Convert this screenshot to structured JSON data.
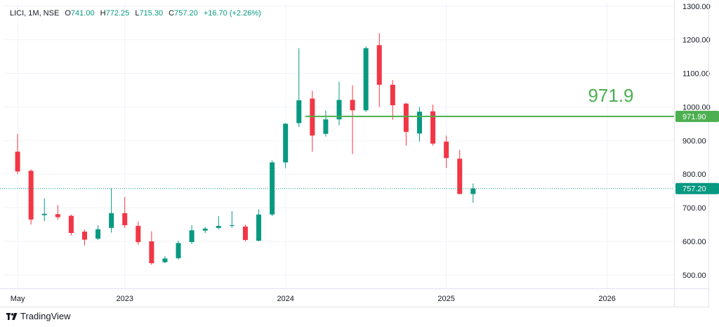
{
  "legend": {
    "symbol": "LICI, 1M, NSE",
    "open_label": "O",
    "open": "741.00",
    "high_label": "H",
    "high": "772.25",
    "low_label": "L",
    "low": "715.30",
    "close_label": "C",
    "close": "757.20",
    "change": "+16.70 (+2.26%)"
  },
  "brand": {
    "name": "TradingView"
  },
  "colors": {
    "up": "#089981",
    "down": "#f23645",
    "level": "#4caf50",
    "grid": "#f0f3fa",
    "border": "#e0e3eb"
  },
  "chart_data": {
    "type": "candlestick",
    "interval": "1M",
    "y_ticks": [
      "500.00",
      "600.00",
      "700.00",
      "800.00",
      "900.00",
      "1000.00",
      "1100.00",
      "1200.00",
      "1300.00"
    ],
    "ylim": [
      460,
      1310
    ],
    "x_ticks": [
      {
        "label": "May",
        "month": "2022-05"
      },
      {
        "label": "2023",
        "month": "2023-01"
      },
      {
        "label": "2024",
        "month": "2024-01"
      },
      {
        "label": "2025",
        "month": "2025-01"
      },
      {
        "label": "2026",
        "month": "2026-01"
      }
    ],
    "xlim_months": [
      "2022-04",
      "2026-06"
    ],
    "candles": [
      {
        "month": "2022-05",
        "o": 867,
        "h": 920,
        "l": 800,
        "c": 808
      },
      {
        "month": "2022-06",
        "o": 810,
        "h": 814,
        "l": 650,
        "c": 665
      },
      {
        "month": "2022-07",
        "o": 678,
        "h": 728,
        "l": 660,
        "c": 682
      },
      {
        "month": "2022-08",
        "o": 681,
        "h": 708,
        "l": 664,
        "c": 672
      },
      {
        "month": "2022-09",
        "o": 676,
        "h": 680,
        "l": 618,
        "c": 625
      },
      {
        "month": "2022-10",
        "o": 629,
        "h": 635,
        "l": 588,
        "c": 605
      },
      {
        "month": "2022-11",
        "o": 608,
        "h": 648,
        "l": 604,
        "c": 636
      },
      {
        "month": "2022-12",
        "o": 640,
        "h": 758,
        "l": 626,
        "c": 684
      },
      {
        "month": "2023-01",
        "o": 684,
        "h": 732,
        "l": 640,
        "c": 648
      },
      {
        "month": "2023-02",
        "o": 646,
        "h": 659,
        "l": 590,
        "c": 598
      },
      {
        "month": "2023-03",
        "o": 600,
        "h": 630,
        "l": 530,
        "c": 535
      },
      {
        "month": "2023-04",
        "o": 538,
        "h": 556,
        "l": 535,
        "c": 549
      },
      {
        "month": "2023-05",
        "o": 550,
        "h": 602,
        "l": 546,
        "c": 595
      },
      {
        "month": "2023-06",
        "o": 598,
        "h": 648,
        "l": 592,
        "c": 633
      },
      {
        "month": "2023-07",
        "o": 632,
        "h": 643,
        "l": 625,
        "c": 638
      },
      {
        "month": "2023-08",
        "o": 640,
        "h": 675,
        "l": 636,
        "c": 646
      },
      {
        "month": "2023-09",
        "o": 647,
        "h": 690,
        "l": 640,
        "c": 648
      },
      {
        "month": "2023-10",
        "o": 644,
        "h": 650,
        "l": 600,
        "c": 604
      },
      {
        "month": "2023-11",
        "o": 602,
        "h": 695,
        "l": 600,
        "c": 680
      },
      {
        "month": "2023-12",
        "o": 680,
        "h": 841,
        "l": 675,
        "c": 835
      },
      {
        "month": "2024-01",
        "o": 835,
        "h": 952,
        "l": 818,
        "c": 950
      },
      {
        "month": "2024-02",
        "o": 952,
        "h": 1175,
        "l": 940,
        "c": 1020
      },
      {
        "month": "2024-03",
        "o": 1025,
        "h": 1048,
        "l": 867,
        "c": 915
      },
      {
        "month": "2024-04",
        "o": 920,
        "h": 990,
        "l": 912,
        "c": 963
      },
      {
        "month": "2024-05",
        "o": 963,
        "h": 1075,
        "l": 945,
        "c": 1021
      },
      {
        "month": "2024-06",
        "o": 1021,
        "h": 1064,
        "l": 860,
        "c": 990
      },
      {
        "month": "2024-07",
        "o": 990,
        "h": 1180,
        "l": 985,
        "c": 1175
      },
      {
        "month": "2024-08",
        "o": 1184,
        "h": 1220,
        "l": 1000,
        "c": 1066
      },
      {
        "month": "2024-09",
        "o": 1066,
        "h": 1080,
        "l": 962,
        "c": 1005
      },
      {
        "month": "2024-10",
        "o": 1010,
        "h": 1012,
        "l": 885,
        "c": 926
      },
      {
        "month": "2024-11",
        "o": 921,
        "h": 1000,
        "l": 897,
        "c": 986
      },
      {
        "month": "2024-12",
        "o": 987,
        "h": 1007,
        "l": 885,
        "c": 891
      },
      {
        "month": "2025-01",
        "o": 897,
        "h": 915,
        "l": 819,
        "c": 848
      },
      {
        "month": "2025-02",
        "o": 846,
        "h": 872,
        "l": 740,
        "c": 741
      },
      {
        "month": "2025-03",
        "o": 741,
        "h": 772.25,
        "l": 715.3,
        "c": 757.2
      }
    ],
    "level": {
      "value": 971.9,
      "label": "971.90",
      "annotation": "971.9"
    },
    "last_price": {
      "value": 757.2,
      "label": "757.20"
    }
  }
}
